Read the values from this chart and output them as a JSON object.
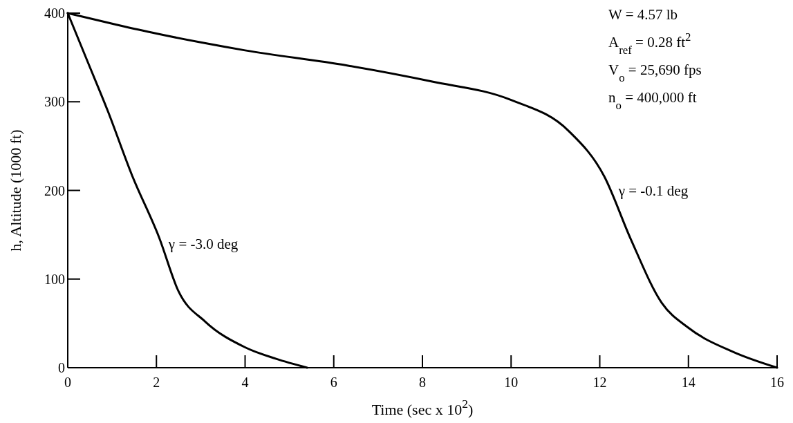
{
  "chart_data": {
    "type": "line",
    "xlabel": "Time (sec x 10$^{2}$)",
    "ylabel": "h, Altitude (1000 ft)",
    "xlim": [
      0,
      16
    ],
    "ylim": [
      0,
      400
    ],
    "xticks": [
      0,
      2,
      4,
      6,
      8,
      10,
      12,
      14,
      16
    ],
    "yticks": [
      0,
      100,
      200,
      300,
      400
    ],
    "marker": "none",
    "line_style": "solid",
    "series": [
      {
        "color": "#000000",
        "x": [
          0,
          0.45,
          0.9,
          1.45,
          2.06,
          2.5,
          3.1,
          4.0,
          4.7,
          5.4
        ],
        "values": [
          400,
          345,
          290,
          217,
          147,
          86,
          52,
          23,
          10,
          0
        ]
      },
      {
        "color": "#000000",
        "x": [
          0,
          1.1,
          2,
          3,
          4,
          6.3,
          8.2,
          10,
          11.3,
          12.1,
          12.7,
          13.4,
          14.0,
          15,
          16
        ],
        "values": [
          400,
          387,
          377,
          367,
          358,
          341,
          323,
          302,
          267,
          216,
          145,
          73,
          45,
          18,
          0
        ]
      }
    ],
    "annotations": [
      {
        "text": "γ =  -3.0 deg",
        "x": 2.15,
        "y": 140
      },
      {
        "text": "γ =  -0.1 deg",
        "x": 12.3,
        "y": 200
      },
      "W = 4.57 lb",
      "A$_{ref}$ = 0.28 ft$^{2}$",
      "V$_{o}$ = 25,690 fps",
      "n$_{o}$ = 400,000 ft"
    ]
  }
}
